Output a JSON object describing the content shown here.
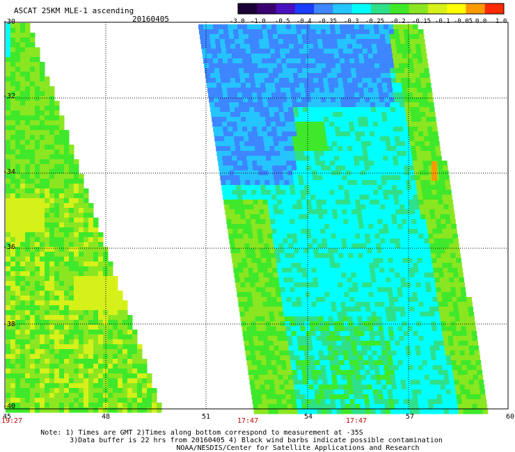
{
  "header": {
    "title": "ASCAT 25KM MLE-1 ascending",
    "date": "20160405"
  },
  "colorbar": {
    "tick_labels": [
      "-3.0",
      "-1.0",
      "-0.5",
      "-0.4",
      "-0.35",
      "-0.3",
      "-0.25",
      "-0.2",
      "-0.15",
      "-0.1",
      "-0.05",
      "0.0",
      "1.0"
    ],
    "colors": [
      "#1a0033",
      "#3a0070",
      "#4a10c0",
      "#1a3cff",
      "#3d86ff",
      "#26c4ff",
      "#00ffff",
      "#2fe08a",
      "#3fe82a",
      "#8ae620",
      "#d6f01a",
      "#ffff00",
      "#ff9900",
      "#ff2a00"
    ]
  },
  "axes": {
    "y_labels": [
      "-30",
      "-32",
      "-34",
      "-36",
      "-38",
      "-40"
    ],
    "x_labels": [
      "45",
      "48",
      "51",
      "54",
      "57",
      "60"
    ],
    "pass_times": [
      "19:27",
      "17:47",
      "17:47"
    ]
  },
  "notes": [
    "Note: 1) Times are GMT 2)Times along bottom correspond to measurement at -35S",
    "3)Data buffer is 22 hrs from 20160405 4) Black wind barbs indicate possible contamination",
    "NOAA/NESDIS/Center for Satellite Applications and Research"
  ]
}
